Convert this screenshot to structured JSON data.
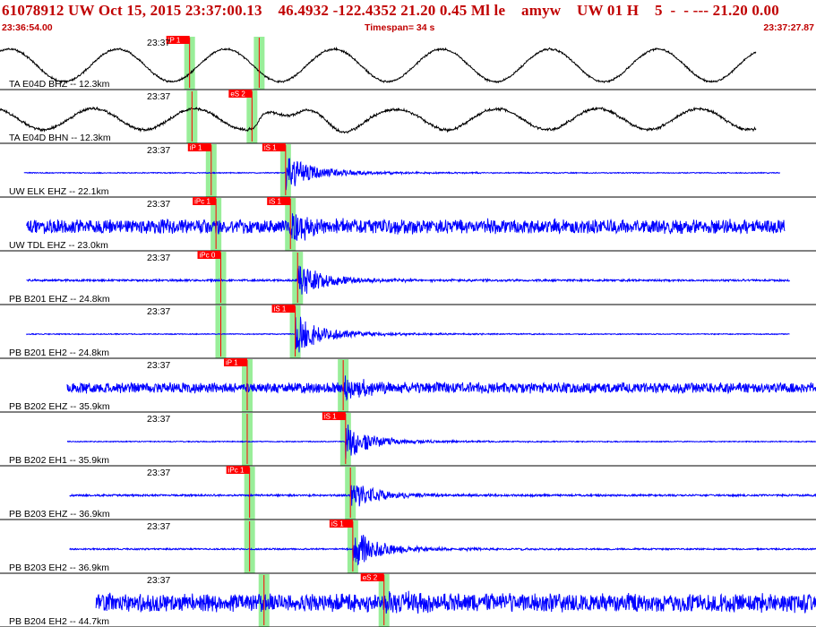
{
  "header": {
    "title": "61078912 UW Oct 15, 2015 23:37:00.13    46.4932 -122.4352 21.20 0.45 Ml le    amyw    UW 01 H    5  -  - --- 21.20 0.00",
    "start_time": "23:36:54.00",
    "timespan": "Timespan=  34 s",
    "end_time": "23:37:27.87"
  },
  "colors": {
    "waveform_blue": "#0000ff",
    "waveform_black": "#000000",
    "pick_red": "#ff0000",
    "window_green": "#99ee99",
    "header_red": "#c00000"
  },
  "chart_data": {
    "type": "line",
    "title": "61078912 UW Oct 15, 2015 23:37:00.13",
    "x_axis": {
      "units": "seconds",
      "start": "23:36:54.00",
      "end": "23:37:27.87",
      "span_s": 34
    },
    "traces": [
      {
        "name": "TA E04D BHZ -- 12.3km",
        "time_label": "23:37",
        "color": "black",
        "kind": "long-period",
        "start_s": 0.0,
        "end_s": 31.5,
        "amp": 0.7,
        "noise": 0.05,
        "period_s": 4.5,
        "seed": 1,
        "event_s": 9.0,
        "event_amp": 0.0,
        "picks": [
          {
            "label": "iP 1",
            "t_s": 7.9
          },
          {
            "label": "",
            "t_s": 10.8
          }
        ]
      },
      {
        "name": "TA E04D BHN -- 12.3km",
        "time_label": "23:37",
        "color": "black",
        "kind": "long-period",
        "start_s": 0.0,
        "end_s": 31.5,
        "amp": 0.45,
        "noise": 0.07,
        "period_s": 4.2,
        "seed": 2,
        "event_s": 11.0,
        "event_amp": 0.5,
        "picks": [
          {
            "label": "",
            "t_s": 8.0
          },
          {
            "label": "eS 2",
            "t_s": 10.5
          }
        ]
      },
      {
        "name": "UW ELK EHZ -- 22.1km",
        "time_label": "23:37",
        "color": "blue",
        "kind": "event",
        "start_s": 1.0,
        "end_s": 32.5,
        "amp": 0.02,
        "noise": 0.02,
        "seed": 3,
        "event_s": 11.9,
        "event_amp": 0.75,
        "picks": [
          {
            "label": "iP 1",
            "t_s": 8.8
          },
          {
            "label": "iS 1",
            "t_s": 11.9
          }
        ]
      },
      {
        "name": "UW TDL EHZ -- 23.0km",
        "time_label": "23:37",
        "color": "blue",
        "kind": "noise",
        "start_s": 1.1,
        "end_s": 32.7,
        "amp": 0.28,
        "noise": 0.28,
        "seed": 4,
        "event_s": 12.1,
        "event_amp": 0.6,
        "picks": [
          {
            "label": "iPc 1",
            "t_s": 9.0
          },
          {
            "label": "iS 1",
            "t_s": 12.1
          }
        ]
      },
      {
        "name": "PB B201 EHZ -- 24.8km",
        "time_label": "23:37",
        "color": "blue",
        "kind": "event",
        "start_s": 1.1,
        "end_s": 32.9,
        "amp": 0.04,
        "noise": 0.04,
        "seed": 5,
        "event_s": 12.4,
        "event_amp": 0.7,
        "picks": [
          {
            "label": "iPc 0",
            "t_s": 9.2
          },
          {
            "label": "",
            "t_s": 12.4
          }
        ]
      },
      {
        "name": "PB B201 EH2 -- 24.8km",
        "time_label": "23:37",
        "color": "blue",
        "kind": "event",
        "start_s": 1.1,
        "end_s": 32.9,
        "amp": 0.02,
        "noise": 0.02,
        "seed": 6,
        "event_s": 12.3,
        "event_amp": 0.85,
        "picks": [
          {
            "label": "",
            "t_s": 9.2
          },
          {
            "label": "iS 1",
            "t_s": 12.3
          }
        ]
      },
      {
        "name": "PB B202 EHZ -- 35.9km",
        "time_label": "23:37",
        "color": "blue",
        "kind": "noise",
        "start_s": 2.8,
        "end_s": 34.3,
        "amp": 0.2,
        "noise": 0.2,
        "seed": 7,
        "event_s": 14.3,
        "event_amp": 0.45,
        "picks": [
          {
            "label": "iP 1",
            "t_s": 10.3
          },
          {
            "label": "",
            "t_s": 14.3
          }
        ]
      },
      {
        "name": "PB B202 EH1 -- 35.9km",
        "time_label": "23:37",
        "color": "blue",
        "kind": "event",
        "start_s": 2.8,
        "end_s": 34.3,
        "amp": 0.02,
        "noise": 0.02,
        "seed": 8,
        "event_s": 14.4,
        "event_amp": 0.7,
        "picks": [
          {
            "label": "",
            "t_s": 10.3
          },
          {
            "label": "iS 1",
            "t_s": 14.4
          }
        ]
      },
      {
        "name": "PB B203 EHZ -- 36.9km",
        "time_label": "23:37",
        "color": "blue",
        "kind": "event",
        "start_s": 2.9,
        "end_s": 34.4,
        "amp": 0.04,
        "noise": 0.04,
        "seed": 9,
        "event_s": 14.6,
        "event_amp": 0.55,
        "picks": [
          {
            "label": "iPc 1",
            "t_s": 10.4
          },
          {
            "label": "",
            "t_s": 14.6
          }
        ]
      },
      {
        "name": "PB B203 EH2 -- 36.9km",
        "time_label": "23:37",
        "color": "blue",
        "kind": "event",
        "start_s": 2.9,
        "end_s": 34.4,
        "amp": 0.03,
        "noise": 0.03,
        "seed": 10,
        "event_s": 14.7,
        "event_amp": 0.8,
        "picks": [
          {
            "label": "",
            "t_s": 10.4
          },
          {
            "label": "iS 1",
            "t_s": 14.7
          }
        ]
      },
      {
        "name": "PB B204 EH2 -- 44.7km",
        "time_label": "23:37",
        "color": "blue",
        "kind": "noise",
        "start_s": 4.0,
        "end_s": 35.2,
        "amp": 0.35,
        "noise": 0.35,
        "seed": 11,
        "event_s": 16.0,
        "event_amp": 0.5,
        "picks": [
          {
            "label": "",
            "t_s": 11.0
          },
          {
            "label": "eS 2",
            "t_s": 16.0
          }
        ]
      }
    ]
  }
}
